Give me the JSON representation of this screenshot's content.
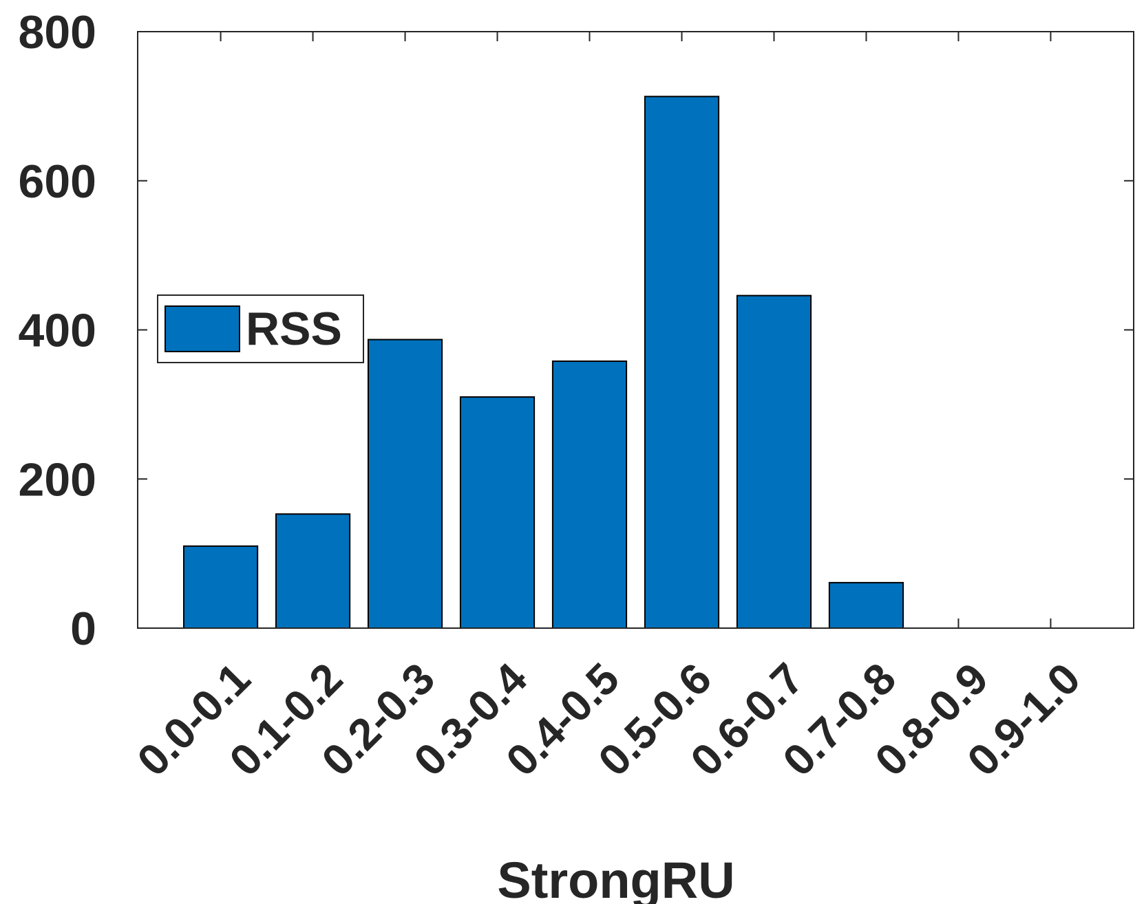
{
  "chart_data": {
    "type": "bar",
    "xlabel": "StrongRU",
    "categories": [
      "0.0-0.1",
      "0.1-0.2",
      "0.2-0.3",
      "0.3-0.4",
      "0.4-0.5",
      "0.5-0.6",
      "0.6-0.7",
      "0.7-0.8",
      "0.8-0.9",
      "0.9-1.0"
    ],
    "series": [
      {
        "name": "RSS",
        "color": "#0072bd",
        "values": [
          110,
          153,
          387,
          310,
          358,
          713,
          446,
          61,
          0,
          0
        ]
      }
    ],
    "ylim": [
      0,
      800
    ],
    "yticks": [
      0,
      200,
      400,
      600,
      800
    ],
    "legend": "west"
  }
}
